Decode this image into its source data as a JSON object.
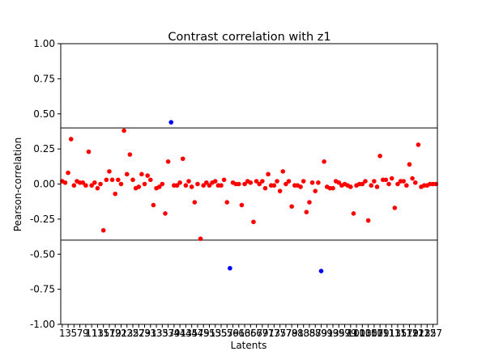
{
  "chart_data": {
    "type": "scatter",
    "title": "Contrast correlation with z1",
    "xlabel": "Latents",
    "ylabel": "Pearson-correlation",
    "ylim": [
      -1.0,
      1.0
    ],
    "xlim": [
      0.5,
      128.5
    ],
    "yticks": [
      "-1.00",
      "-0.75",
      "-0.50",
      "-0.25",
      "0.00",
      "0.25",
      "0.50",
      "0.75",
      "1.00"
    ],
    "yticks_values": [
      -1.0,
      -0.75,
      -0.5,
      -0.25,
      0.0,
      0.25,
      0.5,
      0.75,
      1.0
    ],
    "xtick_step": 2,
    "xtick_start": 1,
    "xtick_end": 127,
    "threshold_lines": [
      0.4,
      -0.4
    ],
    "colors": {
      "above_threshold": "#0000ff",
      "below_threshold": "#ff0000",
      "threshold_line": "#000000"
    },
    "grid": false,
    "x": [
      1,
      2,
      3,
      4,
      5,
      6,
      7,
      8,
      9,
      10,
      11,
      12,
      13,
      14,
      15,
      16,
      17,
      18,
      19,
      20,
      21,
      22,
      23,
      24,
      25,
      26,
      27,
      28,
      29,
      30,
      31,
      32,
      33,
      34,
      35,
      36,
      37,
      38,
      39,
      40,
      41,
      42,
      43,
      44,
      45,
      46,
      47,
      48,
      49,
      50,
      51,
      52,
      53,
      54,
      55,
      56,
      57,
      58,
      59,
      60,
      61,
      62,
      63,
      64,
      65,
      66,
      67,
      68,
      69,
      70,
      71,
      72,
      73,
      74,
      75,
      76,
      77,
      78,
      79,
      80,
      81,
      82,
      83,
      84,
      85,
      86,
      87,
      88,
      89,
      90,
      91,
      92,
      93,
      94,
      95,
      96,
      97,
      98,
      99,
      100,
      101,
      102,
      103,
      104,
      105,
      106,
      107,
      108,
      109,
      110,
      111,
      112,
      113,
      114,
      115,
      116,
      117,
      118,
      119,
      120,
      121,
      122,
      123,
      124,
      125,
      126,
      127,
      128
    ],
    "y": [
      0.02,
      0.01,
      0.08,
      0.32,
      -0.01,
      0.02,
      0.01,
      0.01,
      -0.01,
      0.23,
      -0.01,
      0.01,
      -0.03,
      0.0,
      -0.33,
      0.03,
      0.09,
      0.03,
      -0.07,
      0.03,
      0.0,
      0.38,
      0.07,
      0.21,
      0.03,
      -0.03,
      -0.02,
      0.07,
      0.0,
      0.06,
      0.03,
      -0.15,
      -0.03,
      -0.02,
      0.0,
      -0.21,
      0.16,
      0.44,
      -0.01,
      -0.01,
      0.01,
      0.18,
      -0.01,
      0.02,
      -0.02,
      -0.13,
      0.0,
      -0.39,
      -0.01,
      0.01,
      -0.01,
      0.01,
      0.02,
      -0.01,
      -0.01,
      0.03,
      -0.13,
      -0.6,
      0.01,
      0.0,
      0.0,
      -0.15,
      0.0,
      0.02,
      0.01,
      -0.27,
      0.02,
      0.0,
      0.02,
      -0.03,
      0.07,
      -0.01,
      -0.01,
      0.02,
      -0.05,
      0.09,
      0.0,
      0.02,
      -0.16,
      -0.01,
      -0.01,
      -0.02,
      0.02,
      -0.2,
      -0.13,
      0.01,
      -0.05,
      0.01,
      -0.62,
      0.16,
      -0.02,
      -0.03,
      -0.03,
      0.02,
      0.01,
      -0.01,
      0.0,
      -0.01,
      -0.02,
      -0.21,
      -0.01,
      0.0,
      0.0,
      0.02,
      -0.26,
      -0.01,
      0.02,
      -0.02,
      0.2,
      0.03,
      0.03,
      0.0,
      0.04,
      -0.17,
      0.0,
      0.02,
      0.02,
      -0.01,
      0.14,
      0.04,
      0.01,
      0.28,
      -0.02,
      -0.01,
      -0.01,
      0.0,
      0.0,
      0.0
    ]
  }
}
